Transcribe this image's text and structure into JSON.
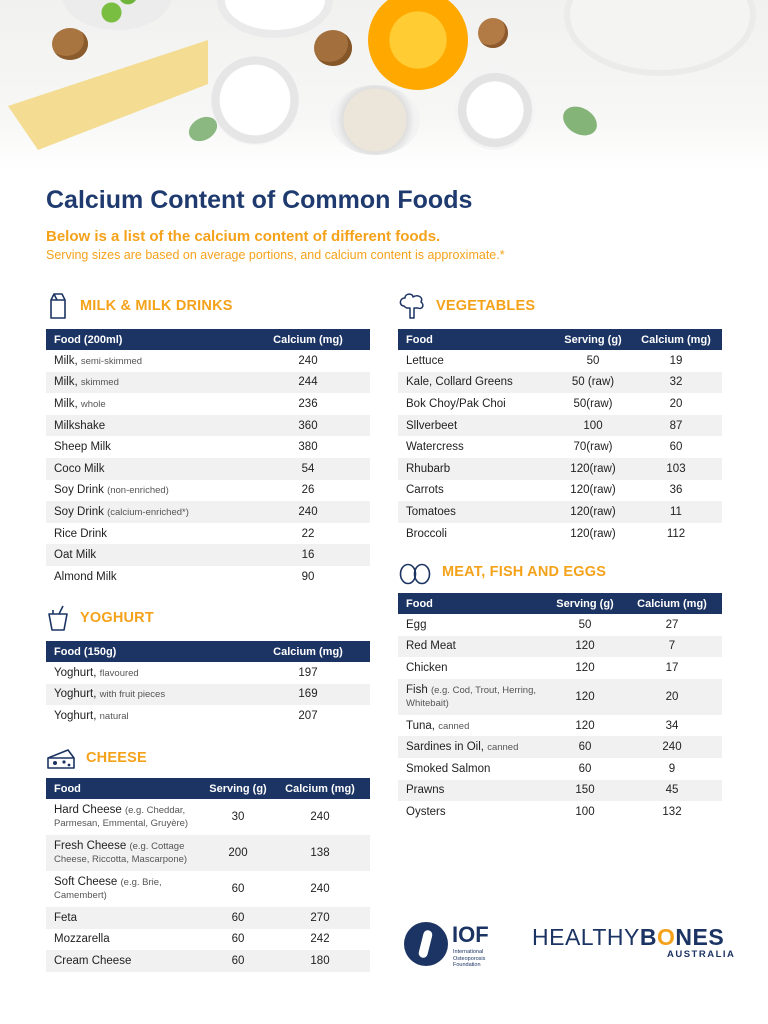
{
  "title": "Calcium Content of Common Foods",
  "subtitle": "Below is a list of the calcium content of different foods.",
  "note": "Serving sizes are based on average portions, and calcium content is approximate.*",
  "colors": {
    "navy": "#1c3463",
    "orange": "#f5a21b"
  },
  "milk": {
    "heading": "MILK & MILK DRINKS",
    "icon": "milk-carton-icon",
    "columns": [
      "Food (200ml)",
      "Calcium (mg)"
    ],
    "rows": [
      {
        "name": "Milk,",
        "qual": "semi-skimmed",
        "calcium": "240"
      },
      {
        "name": "Milk,",
        "qual": "skimmed",
        "calcium": "244"
      },
      {
        "name": "Milk,",
        "qual": "whole",
        "calcium": "236"
      },
      {
        "name": "Milkshake",
        "qual": "",
        "calcium": "360"
      },
      {
        "name": "Sheep Milk",
        "qual": "",
        "calcium": "380"
      },
      {
        "name": "Coco Milk",
        "qual": "",
        "calcium": "54"
      },
      {
        "name": "Soy Drink",
        "qual": "(non-enriched)",
        "calcium": "26"
      },
      {
        "name": "Soy Drink",
        "qual": "(calcium-enriched*)",
        "calcium": "240"
      },
      {
        "name": "Rice Drink",
        "qual": "",
        "calcium": "22"
      },
      {
        "name": "Oat Milk",
        "qual": "",
        "calcium": "16"
      },
      {
        "name": "Almond Milk",
        "qual": "",
        "calcium": "90"
      }
    ]
  },
  "yoghurt": {
    "heading": "YOGHURT",
    "icon": "yoghurt-cup-icon",
    "columns": [
      "Food (150g)",
      "Calcium (mg)"
    ],
    "rows": [
      {
        "name": "Yoghurt,",
        "qual": "flavoured",
        "calcium": "197"
      },
      {
        "name": "Yoghurt,",
        "qual": "with fruit pieces",
        "calcium": "169"
      },
      {
        "name": "Yoghurt,",
        "qual": "natural",
        "calcium": "207"
      }
    ]
  },
  "cheese": {
    "heading": "CHEESE",
    "icon": "cheese-wedge-icon",
    "columns": [
      "Food",
      "Serving (g)",
      "Calcium (mg)"
    ],
    "rows": [
      {
        "name": "Hard Cheese",
        "qual": "(e.g. Cheddar, Parmesan, Emmental, Gruyère)",
        "serving": "30",
        "calcium": "240"
      },
      {
        "name": "Fresh Cheese",
        "qual": "(e.g. Cottage Cheese, Riccotta, Mascarpone)",
        "serving": "200",
        "calcium": "138"
      },
      {
        "name": "Soft Cheese",
        "qual": "(e.g. Brie, Camembert)",
        "serving": "60",
        "calcium": "240"
      },
      {
        "name": "Feta",
        "qual": "",
        "serving": "60",
        "calcium": "270"
      },
      {
        "name": "Mozzarella",
        "qual": "",
        "serving": "60",
        "calcium": "242"
      },
      {
        "name": "Cream Cheese",
        "qual": "",
        "serving": "60",
        "calcium": "180"
      }
    ]
  },
  "vegetables": {
    "heading": "VEGETABLES",
    "icon": "broccoli-icon",
    "columns": [
      "Food",
      "Serving (g)",
      "Calcium (mg)"
    ],
    "rows": [
      {
        "name": "Lettuce",
        "serving": "50",
        "calcium": "19"
      },
      {
        "name": "Kale, Collard Greens",
        "serving": "50 (raw)",
        "calcium": "32"
      },
      {
        "name": "Bok Choy/Pak Choi",
        "serving": "50(raw)",
        "calcium": "20"
      },
      {
        "name": "Sllverbeet",
        "serving": "100",
        "calcium": "87"
      },
      {
        "name": "Watercress",
        "serving": "70(raw)",
        "calcium": "60"
      },
      {
        "name": "Rhubarb",
        "serving": "120(raw)",
        "calcium": "103"
      },
      {
        "name": "Carrots",
        "serving": "120(raw)",
        "calcium": "36"
      },
      {
        "name": "Tomatoes",
        "serving": "120(raw)",
        "calcium": "11"
      },
      {
        "name": "Broccoli",
        "serving": "120(raw)",
        "calcium": "112"
      }
    ]
  },
  "meat": {
    "heading": "MEAT, FISH AND EGGS",
    "icon": "eggs-icon",
    "columns": [
      "Food",
      "Serving (g)",
      "Calcium (mg)"
    ],
    "rows": [
      {
        "name": "Egg",
        "qual": "",
        "serving": "50",
        "calcium": "27"
      },
      {
        "name": "Red Meat",
        "qual": "",
        "serving": "120",
        "calcium": "7"
      },
      {
        "name": "Chicken",
        "qual": "",
        "serving": "120",
        "calcium": "17"
      },
      {
        "name": "Fish",
        "qual": "(e.g. Cod, Trout, Herring, Whitebait)",
        "serving": "120",
        "calcium": "20"
      },
      {
        "name": "Tuna,",
        "qual": "canned",
        "serving": "120",
        "calcium": "34"
      },
      {
        "name": "Sardines in Oil,",
        "qual": "canned",
        "serving": "60",
        "calcium": "240"
      },
      {
        "name": "Smoked Salmon",
        "qual": "",
        "serving": "60",
        "calcium": "9"
      },
      {
        "name": "Prawns",
        "qual": "",
        "serving": "150",
        "calcium": "45"
      },
      {
        "name": "Oysters",
        "qual": "",
        "serving": "100",
        "calcium": "132"
      }
    ]
  },
  "logos": {
    "iof": "IOF",
    "iof_sub": "International Osteoporosis Foundation",
    "hb_left": "HEALTHY",
    "hb_b": "B",
    "hb_o": "O",
    "hb_rest": "NES",
    "hb_sub": "AUSTRALIA"
  }
}
